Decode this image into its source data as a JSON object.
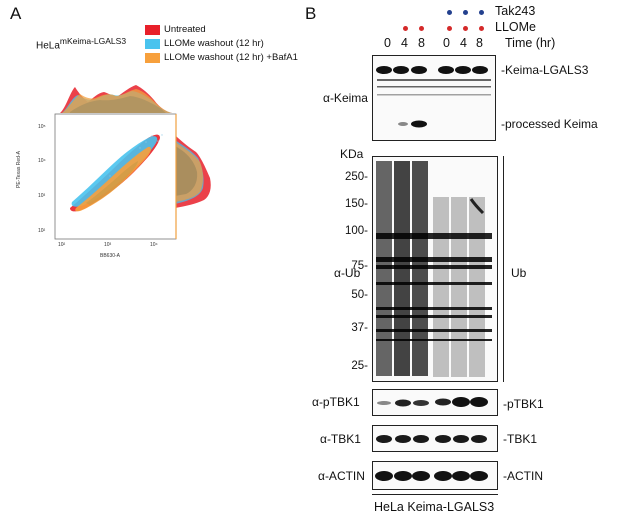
{
  "panels": {
    "a": "A",
    "b": "B"
  },
  "flow": {
    "cell_line_base": "HeLa",
    "cell_line_super": "mKeima-LGALS3",
    "legend": [
      {
        "label": "Untreated",
        "color": "#e8202a"
      },
      {
        "label": "LLOMe washout (12 hr)",
        "color": "#49c3ee"
      },
      {
        "label": "LLOMe washout (12 hr) +BafA1",
        "color": "#f7a03c"
      }
    ],
    "y_axis_label": "PE-Texas Red-A",
    "x_axis_label": "BB630-A",
    "y_ticks": [
      "10⁵",
      "10⁴",
      "10³",
      "10²"
    ],
    "x_ticks": [
      "10²",
      "10³",
      "10⁴"
    ]
  },
  "blot": {
    "treatments": [
      {
        "label": "Tak243",
        "color": "#23408e",
        "present": [
          false,
          false,
          false,
          false,
          true,
          true,
          true
        ]
      },
      {
        "label": "LLOMe",
        "color": "#d42a2a",
        "present": [
          false,
          true,
          true,
          true,
          true,
          true,
          true
        ]
      }
    ],
    "time_values": [
      "0",
      "4",
      "8",
      "0",
      "4",
      "8"
    ],
    "time_label": "Time (hr)",
    "kda_header": "KDa",
    "kda_markers": [
      "250-",
      "150-",
      "100-",
      "75-",
      "50-",
      "37-",
      "25-"
    ],
    "rows": {
      "keima": {
        "antibody": "α-Keima",
        "bands": [
          "-Keima-LGALS3",
          "-processed Keima"
        ]
      },
      "ub": {
        "antibody": "α-Ub",
        "band": "Ub"
      },
      "ptbk1": {
        "antibody": "α-pTBK1",
        "band": "-pTBK1"
      },
      "tbk1": {
        "antibody": "α-TBK1",
        "band": "-TBK1"
      },
      "actin": {
        "antibody": "α-ACTIN",
        "band": "-ACTIN"
      }
    },
    "footer": "HeLa Keima-LGALS3"
  }
}
